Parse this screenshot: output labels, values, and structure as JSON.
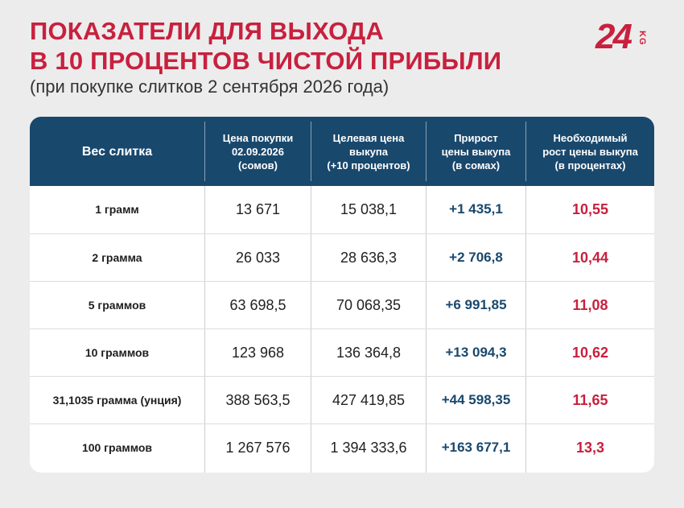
{
  "title": {
    "line1": "ПОКАЗАТЕЛИ ДЛЯ ВЫХОДА",
    "line2": "В 10 ПРОЦЕНТОВ ЧИСТОЙ ПРИБЫЛИ"
  },
  "subtitle": "(при покупке слитков 2 сентября 2026 года)",
  "logo": {
    "number": "24",
    "suffix": "KG"
  },
  "colors": {
    "accent_red": "#c8203e",
    "header_blue": "#19486d",
    "background": "#ececec"
  },
  "table": {
    "headers": [
      "Вес слитка",
      "Цена покупки\n02.09.2026\n(сомов)",
      "Целевая цена\nвыкупа\n(+10 процентов)",
      "Прирост\nцены выкупа\n(в сомах)",
      "Необходимый\nрост цены выкупа\n(в процентах)"
    ],
    "rows": [
      {
        "weight": "1 грамм",
        "buy": "13 671",
        "target": "15 038,1",
        "gain": "+1 435,1",
        "pct": "10,55"
      },
      {
        "weight": "2 грамма",
        "buy": "26 033",
        "target": "28 636,3",
        "gain": "+2 706,8",
        "pct": "10,44"
      },
      {
        "weight": "5 граммов",
        "buy": "63 698,5",
        "target": "70 068,35",
        "gain": "+6 991,85",
        "pct": "11,08"
      },
      {
        "weight": "10 граммов",
        "buy": "123 968",
        "target": "136 364,8",
        "gain": "+13 094,3",
        "pct": "10,62"
      },
      {
        "weight": "31,1035 грамма (унция)",
        "buy": "388 563,5",
        "target": "427 419,85",
        "gain": "+44 598,35",
        "pct": "11,65"
      },
      {
        "weight": "100 граммов",
        "buy": "1 267 576",
        "target": "1 394 333,6",
        "gain": "+163 677,1",
        "pct": "13,3"
      }
    ]
  }
}
